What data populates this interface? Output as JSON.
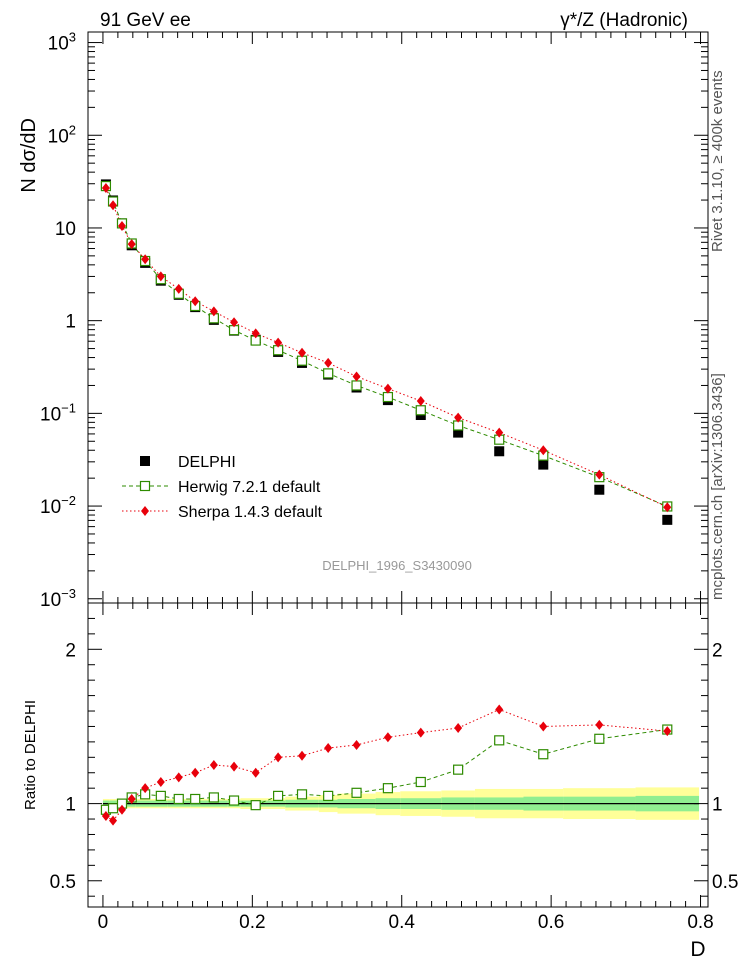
{
  "header": {
    "left_title": "91 GeV ee",
    "right_title": "γ*/Z (Hadronic)"
  },
  "side_labels": {
    "rivet": "Rivet 3.1.10, ≥ 400k events",
    "mcplots": "mcplots.cern.ch [arXiv:1306.3436]"
  },
  "analysis_label": "DELPHI_1996_S3430090",
  "colors": {
    "data": "#000000",
    "herwig": "#2e8b00",
    "sherpa": "#e8000b",
    "band_inner": "#90ee90",
    "band_outer": "#ffff99"
  },
  "chart_data": [
    {
      "type": "scatter",
      "panel": "main",
      "yscale": "log",
      "xlabel": "D",
      "ylabel": "N dσ/dD",
      "xlim": [
        -0.02,
        0.81
      ],
      "ylim": [
        0.0009,
        1300
      ],
      "x_ticks": [
        "0",
        "0.2",
        "0.4",
        "0.6",
        "0.8"
      ],
      "y_ticks": [
        {
          "value": 0.001,
          "label": "10",
          "exp": "−3"
        },
        {
          "value": 0.01,
          "label": "10",
          "exp": "−2"
        },
        {
          "value": 0.1,
          "label": "10",
          "exp": "−1"
        },
        {
          "value": 1,
          "label": "1",
          "exp": ""
        },
        {
          "value": 10,
          "label": "10",
          "exp": ""
        },
        {
          "value": 100,
          "label": "10",
          "exp": "2"
        },
        {
          "value": 1000,
          "label": "10",
          "exp": "3"
        }
      ],
      "legend": [
        {
          "key": "data",
          "label": "DELPHI"
        },
        {
          "key": "herwig",
          "label": "Herwig 7.2.1 default"
        },
        {
          "key": "sherpa",
          "label": "Sherpa 1.4.3 default"
        }
      ],
      "legend_position": "lower-left",
      "x": [
        0.004,
        0.0135,
        0.0255,
        0.0385,
        0.0565,
        0.0775,
        0.1015,
        0.1235,
        0.1485,
        0.1755,
        0.2045,
        0.2345,
        0.2665,
        0.3015,
        0.3395,
        0.3815,
        0.4255,
        0.4755,
        0.5305,
        0.5895,
        0.6645,
        0.7555
      ],
      "series": [
        {
          "name": "DELPHI",
          "key": "data",
          "values": [
            29.5,
            19.8,
            11.2,
            6.5,
            4.2,
            2.7,
            1.9,
            1.4,
            1.02,
            0.78,
            0.62,
            0.46,
            0.35,
            0.262,
            0.19,
            0.139,
            0.096,
            0.062,
            0.039,
            0.028,
            0.015,
            0.0071
          ]
        },
        {
          "name": "Herwig 7.2.1 default",
          "key": "herwig",
          "values": [
            28.3,
            19.3,
            11.2,
            6.8,
            4.4,
            2.8,
            1.95,
            1.44,
            1.06,
            0.79,
            0.61,
            0.48,
            0.37,
            0.27,
            0.2,
            0.15,
            0.108,
            0.074,
            0.052,
            0.035,
            0.0205,
            0.0099
          ]
        },
        {
          "name": "Sherpa 1.4.3 default",
          "key": "sherpa",
          "values": [
            27.0,
            17.6,
            10.5,
            6.7,
            4.6,
            3.0,
            2.2,
            1.62,
            1.26,
            0.96,
            0.73,
            0.58,
            0.45,
            0.35,
            0.25,
            0.185,
            0.136,
            0.09,
            0.062,
            0.04,
            0.0218,
            0.0097
          ]
        }
      ]
    },
    {
      "type": "line",
      "panel": "ratio",
      "ylabel": "Ratio to DELPHI",
      "xlabel": "D",
      "xlim": [
        -0.02,
        0.81
      ],
      "ylim": [
        0.33,
        2.3
      ],
      "y_ticks": [
        {
          "value": 0.5,
          "label": "0.5"
        },
        {
          "value": 1,
          "label": "1"
        },
        {
          "value": 2,
          "label": "2"
        }
      ],
      "x": [
        0.004,
        0.0135,
        0.0255,
        0.0385,
        0.0565,
        0.0775,
        0.1015,
        0.1235,
        0.1485,
        0.1755,
        0.2045,
        0.2345,
        0.2665,
        0.3015,
        0.3395,
        0.3815,
        0.4255,
        0.4755,
        0.5305,
        0.5895,
        0.6645,
        0.7555
      ],
      "series": [
        {
          "name": "Herwig 7.2.1 default",
          "key": "herwig",
          "values": [
            0.96,
            0.97,
            1.0,
            1.04,
            1.06,
            1.05,
            1.03,
            1.03,
            1.04,
            1.02,
            0.99,
            1.05,
            1.06,
            1.05,
            1.07,
            1.1,
            1.14,
            1.22,
            1.41,
            1.32,
            1.42,
            1.48
          ]
        },
        {
          "name": "Sherpa 1.4.3 default",
          "key": "sherpa",
          "values": [
            0.92,
            0.89,
            0.96,
            1.03,
            1.1,
            1.14,
            1.17,
            1.2,
            1.25,
            1.24,
            1.2,
            1.3,
            1.31,
            1.36,
            1.38,
            1.43,
            1.46,
            1.49,
            1.61,
            1.5,
            1.51,
            1.47
          ]
        }
      ],
      "band_bins": [
        0.0,
        0.009,
        0.018,
        0.033,
        0.044,
        0.069,
        0.086,
        0.117,
        0.13,
        0.167,
        0.184,
        0.225,
        0.244,
        0.289,
        0.314,
        0.365,
        0.398,
        0.453,
        0.498,
        0.563,
        0.616,
        0.713,
        0.798
      ],
      "band_inner_halfwidth": [
        0.02,
        0.02,
        0.02,
        0.02,
        0.02,
        0.02,
        0.02,
        0.02,
        0.02,
        0.02,
        0.02,
        0.02,
        0.025,
        0.025,
        0.03,
        0.035,
        0.035,
        0.04,
        0.04,
        0.045,
        0.045,
        0.05
      ],
      "band_outer_halfwidth": [
        0.03,
        0.03,
        0.03,
        0.03,
        0.03,
        0.03,
        0.03,
        0.03,
        0.03,
        0.03,
        0.035,
        0.035,
        0.045,
        0.055,
        0.065,
        0.075,
        0.08,
        0.085,
        0.095,
        0.095,
        0.1,
        0.105
      ]
    }
  ]
}
